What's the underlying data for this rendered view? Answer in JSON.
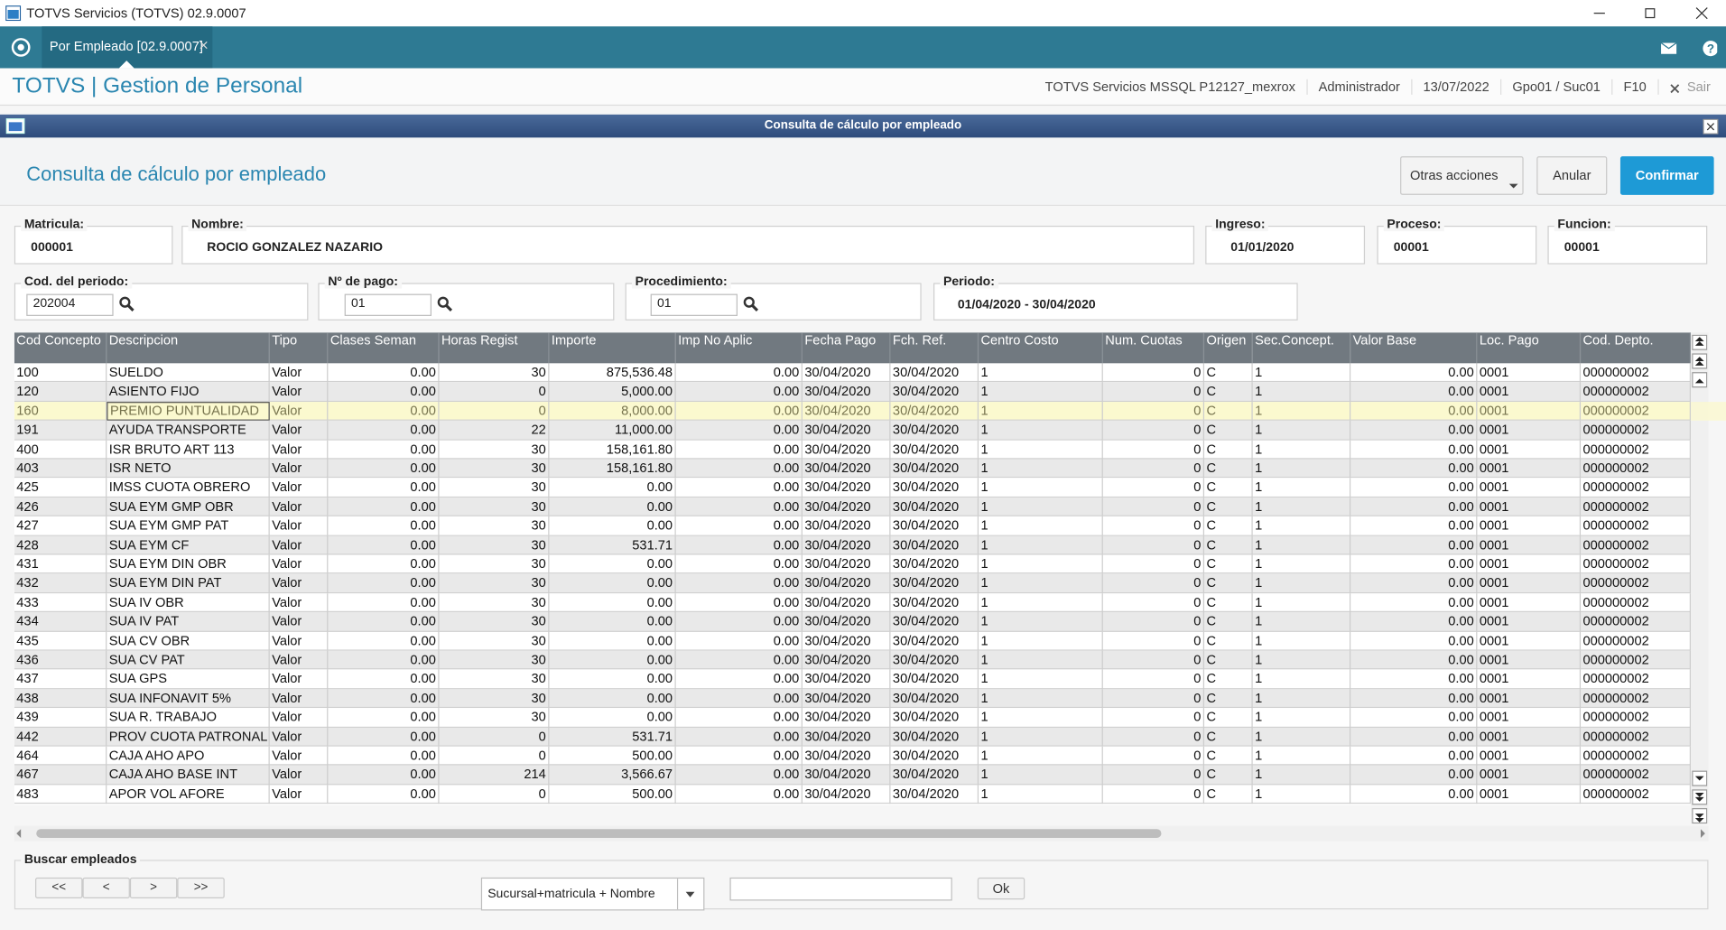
{
  "window": {
    "title": "TOTVS Servicios (TOTVS) 02.9.0007",
    "tab": "Por Empleado [02.9.0007]",
    "app_title": "TOTVS | Gestion de Personal",
    "status": [
      "TOTVS Servicios MSSQL P12127_mexrox",
      "Administrador",
      "13/07/2022",
      "Gpo01 / Suc01",
      "F10"
    ],
    "exit": "Sair"
  },
  "dialog": {
    "title": "Consulta de cálculo por empleado",
    "heading": "Consulta de cálculo por empleado",
    "actions": [
      "Otras acciones",
      "Anular",
      "Confirmar"
    ]
  },
  "employee": [
    {
      "label": "Matricula:",
      "value": "000001"
    },
    {
      "label": "Nombre:",
      "value": "ROCIO  GONZALEZ NAZARIO"
    },
    {
      "label": "Ingreso:",
      "value": "01/01/2020"
    },
    {
      "label": "Proceso:",
      "value": "00001"
    },
    {
      "label": "Funcion:",
      "value": "00001"
    }
  ],
  "period": [
    {
      "label": "Cod. del periodo:",
      "value": "202004"
    },
    {
      "label": "Nº de pago:",
      "value": "01"
    },
    {
      "label": "Procedimiento:",
      "value": "01"
    },
    {
      "label": "Periodo:",
      "value": "01/04/2020 - 30/04/2020"
    }
  ],
  "table": {
    "columns": [
      "Cod Concepto",
      "Descripcion",
      "Tipo",
      "Clases Seman",
      "Horas Regist",
      "Importe",
      "Imp No Aplic",
      "Fecha Pago",
      "Fch. Ref.",
      "Centro Costo",
      "Num. Cuotas",
      "Origen",
      "Sec.Concept.",
      "Valor Base",
      "Loc. Pago",
      "Cod. Depto."
    ],
    "rows": [
      [
        "100",
        "SUELDO",
        "Valor",
        "0.00",
        "30",
        "875,536.48",
        "0.00",
        "30/04/2020",
        "30/04/2020",
        "1",
        "0",
        "C",
        "1",
        "0.00",
        "0001",
        "000000002"
      ],
      [
        "120",
        "ASIENTO FIJO",
        "Valor",
        "0.00",
        "0",
        "5,000.00",
        "0.00",
        "30/04/2020",
        "30/04/2020",
        "1",
        "0",
        "C",
        "1",
        "0.00",
        "0001",
        "000000002"
      ],
      [
        "160",
        "PREMIO PUNTUALIDAD",
        "Valor",
        "0.00",
        "0",
        "8,000.00",
        "0.00",
        "30/04/2020",
        "30/04/2020",
        "1",
        "0",
        "C",
        "1",
        "0.00",
        "0001",
        "000000002"
      ],
      [
        "191",
        "AYUDA TRANSPORTE",
        "Valor",
        "0.00",
        "22",
        "11,000.00",
        "0.00",
        "30/04/2020",
        "30/04/2020",
        "1",
        "0",
        "C",
        "1",
        "0.00",
        "0001",
        "000000002"
      ],
      [
        "400",
        "ISR BRUTO ART 113",
        "Valor",
        "0.00",
        "30",
        "158,161.80",
        "0.00",
        "30/04/2020",
        "30/04/2020",
        "1",
        "0",
        "C",
        "1",
        "0.00",
        "0001",
        "000000002"
      ],
      [
        "403",
        "ISR NETO",
        "Valor",
        "0.00",
        "30",
        "158,161.80",
        "0.00",
        "30/04/2020",
        "30/04/2020",
        "1",
        "0",
        "C",
        "1",
        "0.00",
        "0001",
        "000000002"
      ],
      [
        "425",
        "IMSS CUOTA OBRERO",
        "Valor",
        "0.00",
        "30",
        "0.00",
        "0.00",
        "30/04/2020",
        "30/04/2020",
        "1",
        "0",
        "C",
        "1",
        "0.00",
        "0001",
        "000000002"
      ],
      [
        "426",
        "SUA EYM GMP OBR",
        "Valor",
        "0.00",
        "30",
        "0.00",
        "0.00",
        "30/04/2020",
        "30/04/2020",
        "1",
        "0",
        "C",
        "1",
        "0.00",
        "0001",
        "000000002"
      ],
      [
        "427",
        "SUA EYM GMP PAT",
        "Valor",
        "0.00",
        "30",
        "0.00",
        "0.00",
        "30/04/2020",
        "30/04/2020",
        "1",
        "0",
        "C",
        "1",
        "0.00",
        "0001",
        "000000002"
      ],
      [
        "428",
        "SUA EYM CF",
        "Valor",
        "0.00",
        "30",
        "531.71",
        "0.00",
        "30/04/2020",
        "30/04/2020",
        "1",
        "0",
        "C",
        "1",
        "0.00",
        "0001",
        "000000002"
      ],
      [
        "431",
        "SUA EYM DIN OBR",
        "Valor",
        "0.00",
        "30",
        "0.00",
        "0.00",
        "30/04/2020",
        "30/04/2020",
        "1",
        "0",
        "C",
        "1",
        "0.00",
        "0001",
        "000000002"
      ],
      [
        "432",
        "SUA EYM DIN PAT",
        "Valor",
        "0.00",
        "30",
        "0.00",
        "0.00",
        "30/04/2020",
        "30/04/2020",
        "1",
        "0",
        "C",
        "1",
        "0.00",
        "0001",
        "000000002"
      ],
      [
        "433",
        "SUA IV OBR",
        "Valor",
        "0.00",
        "30",
        "0.00",
        "0.00",
        "30/04/2020",
        "30/04/2020",
        "1",
        "0",
        "C",
        "1",
        "0.00",
        "0001",
        "000000002"
      ],
      [
        "434",
        "SUA IV PAT",
        "Valor",
        "0.00",
        "30",
        "0.00",
        "0.00",
        "30/04/2020",
        "30/04/2020",
        "1",
        "0",
        "C",
        "1",
        "0.00",
        "0001",
        "000000002"
      ],
      [
        "435",
        "SUA CV OBR",
        "Valor",
        "0.00",
        "30",
        "0.00",
        "0.00",
        "30/04/2020",
        "30/04/2020",
        "1",
        "0",
        "C",
        "1",
        "0.00",
        "0001",
        "000000002"
      ],
      [
        "436",
        "SUA CV PAT",
        "Valor",
        "0.00",
        "30",
        "0.00",
        "0.00",
        "30/04/2020",
        "30/04/2020",
        "1",
        "0",
        "C",
        "1",
        "0.00",
        "0001",
        "000000002"
      ],
      [
        "437",
        "SUA GPS",
        "Valor",
        "0.00",
        "30",
        "0.00",
        "0.00",
        "30/04/2020",
        "30/04/2020",
        "1",
        "0",
        "C",
        "1",
        "0.00",
        "0001",
        "000000002"
      ],
      [
        "438",
        "SUA INFONAVIT 5%",
        "Valor",
        "0.00",
        "30",
        "0.00",
        "0.00",
        "30/04/2020",
        "30/04/2020",
        "1",
        "0",
        "C",
        "1",
        "0.00",
        "0001",
        "000000002"
      ],
      [
        "439",
        "SUA R. TRABAJO",
        "Valor",
        "0.00",
        "30",
        "0.00",
        "0.00",
        "30/04/2020",
        "30/04/2020",
        "1",
        "0",
        "C",
        "1",
        "0.00",
        "0001",
        "000000002"
      ],
      [
        "442",
        "PROV CUOTA PATRONAL",
        "Valor",
        "0.00",
        "0",
        "531.71",
        "0.00",
        "30/04/2020",
        "30/04/2020",
        "1",
        "0",
        "C",
        "1",
        "0.00",
        "0001",
        "000000002"
      ],
      [
        "464",
        "CAJA AHO APO",
        "Valor",
        "0.00",
        "0",
        "500.00",
        "0.00",
        "30/04/2020",
        "30/04/2020",
        "1",
        "0",
        "C",
        "1",
        "0.00",
        "0001",
        "000000002"
      ],
      [
        "467",
        "CAJA AHO BASE INT",
        "Valor",
        "0.00",
        "214",
        "3,566.67",
        "0.00",
        "30/04/2020",
        "30/04/2020",
        "1",
        "0",
        "C",
        "1",
        "0.00",
        "0001",
        "000000002"
      ],
      [
        "483",
        "APOR VOL AFORE",
        "Valor",
        "0.00",
        "0",
        "500.00",
        "0.00",
        "30/04/2020",
        "30/04/2020",
        "1",
        "0",
        "C",
        "1",
        "0.00",
        "0001",
        "000000002"
      ]
    ]
  },
  "search": {
    "title": "Buscar empleados",
    "nav": [
      "<<",
      "<",
      ">",
      ">>"
    ],
    "order": "Sucursal+matricula + Nombre",
    "ok": "Ok"
  }
}
